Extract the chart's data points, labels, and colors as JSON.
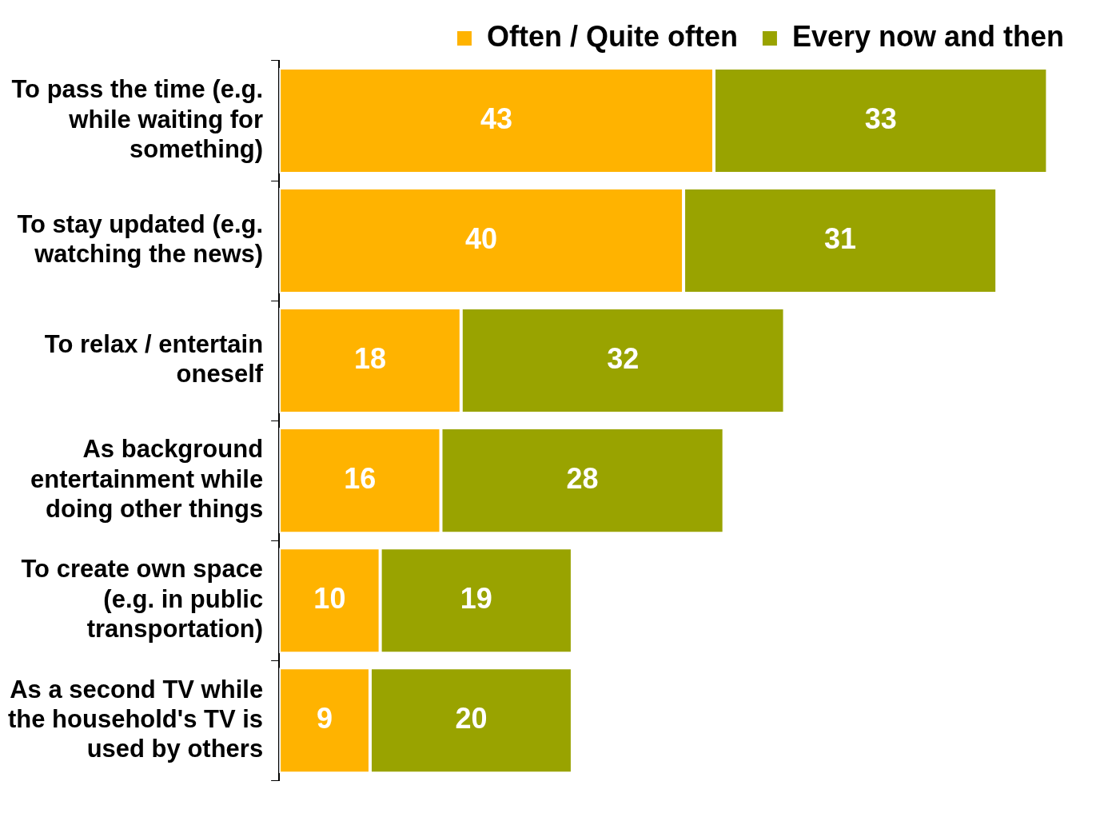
{
  "chart_data": {
    "type": "bar",
    "orientation": "horizontal",
    "stacked": true,
    "data_labels": true,
    "legend": "top right",
    "grid": false,
    "categories": [
      "To pass the time (e.g. while waiting for something)",
      "To stay updated (e.g. watching the news)",
      "To relax / entertain oneself",
      "As background entertainment while doing other things",
      "To create own space (e.g. in public transportation)",
      "As a second TV while the household's TV is used by others"
    ],
    "series": [
      {
        "name": "Often / Quite often",
        "color": "#ffb300",
        "values": [
          43,
          40,
          18,
          16,
          10,
          9
        ]
      },
      {
        "name": "Every now and then",
        "color": "#99a300",
        "values": [
          33,
          31,
          32,
          28,
          19,
          20
        ]
      }
    ]
  }
}
